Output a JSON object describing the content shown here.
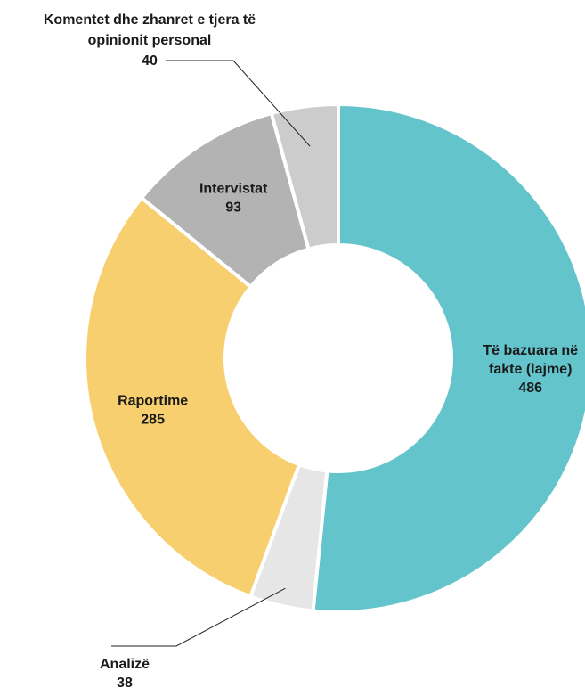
{
  "chart_data": {
    "type": "pie",
    "variant": "donut",
    "title": "",
    "slices": [
      {
        "label": "Të bazuara në fakte (lajme)",
        "label_lines": [
          "Të bazuara në",
          "fakte (lajme)"
        ],
        "value": 486,
        "value_text": "486",
        "color": "#64c4cb",
        "label_placement": "inside"
      },
      {
        "label": "Analizë",
        "label_lines": [
          "Analizë"
        ],
        "value": 38,
        "value_text": "38",
        "color": "#e6e6e6",
        "label_placement": "outside-bottom"
      },
      {
        "label": "Raportime",
        "label_lines": [
          "Raportime"
        ],
        "value": 285,
        "value_text": "285",
        "color": "#f7cf6e",
        "label_placement": "inside"
      },
      {
        "label": "Intervistat",
        "label_lines": [
          "Intervistat"
        ],
        "value": 93,
        "value_text": "93",
        "color": "#b3b3b3",
        "label_placement": "inside"
      },
      {
        "label": "Komentet dhe zhanret e tjera të opinionit personal",
        "label_lines": [
          "Komentet dhe zhanret e tjera të",
          "opinionit personal"
        ],
        "value": 40,
        "value_text": "40",
        "color": "#cccccc",
        "label_placement": "outside-top"
      }
    ]
  }
}
